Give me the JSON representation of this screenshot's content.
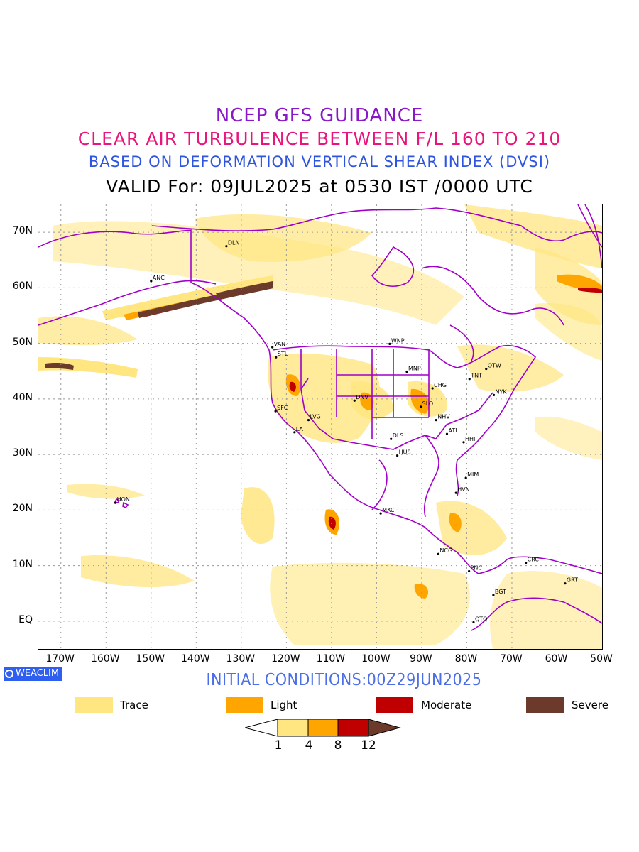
{
  "titles": {
    "line1": "NCEP GFS GUIDANCE",
    "line2": "CLEAR AIR TURBULENCE BETWEEN F/L 160 TO 210",
    "line3": "BASED ON DEFORMATION VERTICAL SHEAR INDEX (DVSI)",
    "line4": "VALID For: 09JUL2025 at 0530 IST /0000 UTC"
  },
  "map": {
    "lon_range": [
      -175,
      -50
    ],
    "lat_range": [
      -5,
      75
    ],
    "lat_labels": [
      "70N",
      "60N",
      "50N",
      "40N",
      "30N",
      "20N",
      "10N",
      "EQ"
    ],
    "lat_values": [
      70,
      60,
      50,
      40,
      30,
      20,
      10,
      0
    ],
    "lon_labels": [
      "170W",
      "160W",
      "150W",
      "140W",
      "130W",
      "120W",
      "110W",
      "100W",
      "90W",
      "80W",
      "70W",
      "60W",
      "50W"
    ],
    "lon_values": [
      -170,
      -160,
      -150,
      -140,
      -130,
      -120,
      -110,
      -100,
      -90,
      -80,
      -70,
      -60,
      -50
    ],
    "grid": "dotted",
    "colors": {
      "trace": "#ffe680",
      "light": "#ffa500",
      "moderate": "#c00000",
      "severe": "#6b3a2a",
      "boundaries": "#a000c8"
    },
    "stations": [
      {
        "code": "ANC",
        "lon": -150,
        "lat": 61.2
      },
      {
        "code": "DLN",
        "lon": -133.3,
        "lat": 67.5
      },
      {
        "code": "VAN",
        "lon": -123.1,
        "lat": 49.3
      },
      {
        "code": "STL",
        "lon": -122.3,
        "lat": 47.5
      },
      {
        "code": "WNP",
        "lon": -97.1,
        "lat": 49.9
      },
      {
        "code": "MNP",
        "lon": -93.3,
        "lat": 44.9
      },
      {
        "code": "TNT",
        "lon": -79.4,
        "lat": 43.6
      },
      {
        "code": "OTW",
        "lon": -75.7,
        "lat": 45.4
      },
      {
        "code": "CHG",
        "lon": -87.6,
        "lat": 41.9
      },
      {
        "code": "NYK",
        "lon": -74.0,
        "lat": 40.7
      },
      {
        "code": "SFC",
        "lon": -122.4,
        "lat": 37.8
      },
      {
        "code": "LVG",
        "lon": -115.1,
        "lat": 36.2
      },
      {
        "code": "DNV",
        "lon": -104.9,
        "lat": 39.7
      },
      {
        "code": "SLO",
        "lon": -90.2,
        "lat": 38.6
      },
      {
        "code": "NHV",
        "lon": -86.8,
        "lat": 36.2
      },
      {
        "code": "LA",
        "lon": -118.2,
        "lat": 34.0
      },
      {
        "code": "ATL",
        "lon": -84.4,
        "lat": 33.7
      },
      {
        "code": "DLS",
        "lon": -96.8,
        "lat": 32.8
      },
      {
        "code": "HHI",
        "lon": -80.7,
        "lat": 32.2
      },
      {
        "code": "HUS",
        "lon": -95.4,
        "lat": 29.8
      },
      {
        "code": "MIM",
        "lon": -80.2,
        "lat": 25.8
      },
      {
        "code": "HVN",
        "lon": -82.4,
        "lat": 23.1
      },
      {
        "code": "HON",
        "lon": -157.9,
        "lat": 21.3
      },
      {
        "code": "MXC",
        "lon": -99.1,
        "lat": 19.4
      },
      {
        "code": "NCG",
        "lon": -86.3,
        "lat": 12.1
      },
      {
        "code": "CRC",
        "lon": -66.9,
        "lat": 10.5
      },
      {
        "code": "PNC",
        "lon": -79.5,
        "lat": 9.0
      },
      {
        "code": "GRT",
        "lon": -58.2,
        "lat": 6.8
      },
      {
        "code": "BGT",
        "lon": -74.1,
        "lat": 4.7
      },
      {
        "code": "QTO",
        "lon": -78.5,
        "lat": -0.2
      }
    ]
  },
  "watermark": "WEACLIM",
  "initial_conditions": "INITIAL CONDITIONS:00Z29JUN2025",
  "legend": [
    {
      "label": "Trace",
      "color": "#ffe680"
    },
    {
      "label": "Light",
      "color": "#ffa500"
    },
    {
      "label": "Moderate",
      "color": "#c00000"
    },
    {
      "label": "Severe",
      "color": "#6b3a2a"
    }
  ],
  "colorbar": {
    "ticks": [
      "1",
      "4",
      "8",
      "12"
    ],
    "colors": [
      "#ffffff",
      "#ffe680",
      "#ffa500",
      "#c00000",
      "#6b3a2a"
    ]
  }
}
